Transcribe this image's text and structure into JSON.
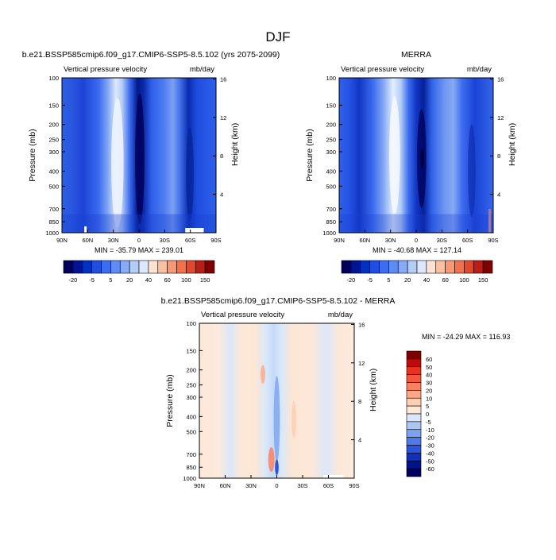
{
  "figure": {
    "title": "DJF"
  },
  "chart_data": [
    {
      "type": "heatmap",
      "title": "b.e21.BSSP585cmip6.f09_g17.CMIP6-SSP5-8.5.102 (yrs 2075-2099)",
      "left_string": "Vertical pressure velocity",
      "right_string": "mb/day",
      "ylabel": "Pressure (mb)",
      "ylabel_right": "Height (km)",
      "x_tick_labels": [
        "90N",
        "60N",
        "30N",
        "0",
        "30S",
        "60S",
        "90S"
      ],
      "y_tick_labels": [
        "100",
        "150",
        "200",
        "250",
        "300",
        "400",
        "500",
        "700",
        "850",
        "1000"
      ],
      "height_tick_labels": [
        "16",
        "12",
        "8",
        "4"
      ],
      "stats": "MIN = -35.79   MAX = 239.01",
      "colorbar_labels": [
        "-20",
        "-5",
        "5",
        "20",
        "40",
        "60",
        "100",
        "150"
      ],
      "colors": [
        "#00005a",
        "#001494",
        "#0032c0",
        "#1f4ee0",
        "#3c6cf0",
        "#5e8cf4",
        "#86aaf4",
        "#b4cdf6",
        "#dde9fb",
        "#fde2cf",
        "#fcc0a0",
        "#fa9874",
        "#f4704c",
        "#e04830",
        "#b81e16",
        "#800000"
      ]
    },
    {
      "type": "heatmap",
      "title": "MERRA",
      "left_string": "Vertical pressure velocity",
      "right_string": "mb/day",
      "ylabel": "Pressure (mb)",
      "ylabel_right": "Height (km)",
      "x_tick_labels": [
        "90N",
        "60N",
        "30N",
        "0",
        "30S",
        "60S",
        "90S"
      ],
      "y_tick_labels": [
        "100",
        "150",
        "200",
        "250",
        "300",
        "400",
        "500",
        "700",
        "850",
        "1000"
      ],
      "height_tick_labels": [
        "16",
        "12",
        "8",
        "4"
      ],
      "stats": "MIN = -40.68   MAX = 127.14",
      "colorbar_labels": [
        "-20",
        "-5",
        "5",
        "20",
        "40",
        "60",
        "100",
        "150"
      ],
      "colors": [
        "#00005a",
        "#001494",
        "#0032c0",
        "#1f4ee0",
        "#3c6cf0",
        "#5e8cf4",
        "#86aaf4",
        "#b4cdf6",
        "#dde9fb",
        "#fde2cf",
        "#fcc0a0",
        "#fa9874",
        "#f4704c",
        "#e04830",
        "#b81e16",
        "#800000"
      ]
    },
    {
      "type": "heatmap",
      "title": "b.e21.BSSP585cmip6.f09_g17.CMIP6-SSP5-8.5.102 - MERRA",
      "left_string": "Vertical pressure velocity",
      "right_string": "mb/day",
      "ylabel": "Pressure (mb)",
      "ylabel_right": "Height (km)",
      "x_tick_labels": [
        "90N",
        "60N",
        "30N",
        "0",
        "30S",
        "60S",
        "90S"
      ],
      "y_tick_labels": [
        "100",
        "150",
        "200",
        "250",
        "300",
        "400",
        "500",
        "700",
        "850",
        "1000"
      ],
      "height_tick_labels": [
        "16",
        "12",
        "8",
        "4"
      ],
      "stats": "MIN = -24.29   MAX = 116.93",
      "colorbar_labels": [
        "60",
        "50",
        "40",
        "30",
        "20",
        "10",
        "5",
        "0",
        "-5",
        "-10",
        "-20",
        "-30",
        "-40",
        "-50",
        "-60"
      ],
      "colors": [
        "#800000",
        "#c00a0a",
        "#e8321e",
        "#f4583c",
        "#f98160",
        "#fca886",
        "#fdcfb2",
        "#fde8d8",
        "#d8e8fa",
        "#a9c6f5",
        "#7aa2f0",
        "#4f7ae8",
        "#2b55dc",
        "#0f30b8",
        "#00138a",
        "#000060"
      ]
    }
  ]
}
